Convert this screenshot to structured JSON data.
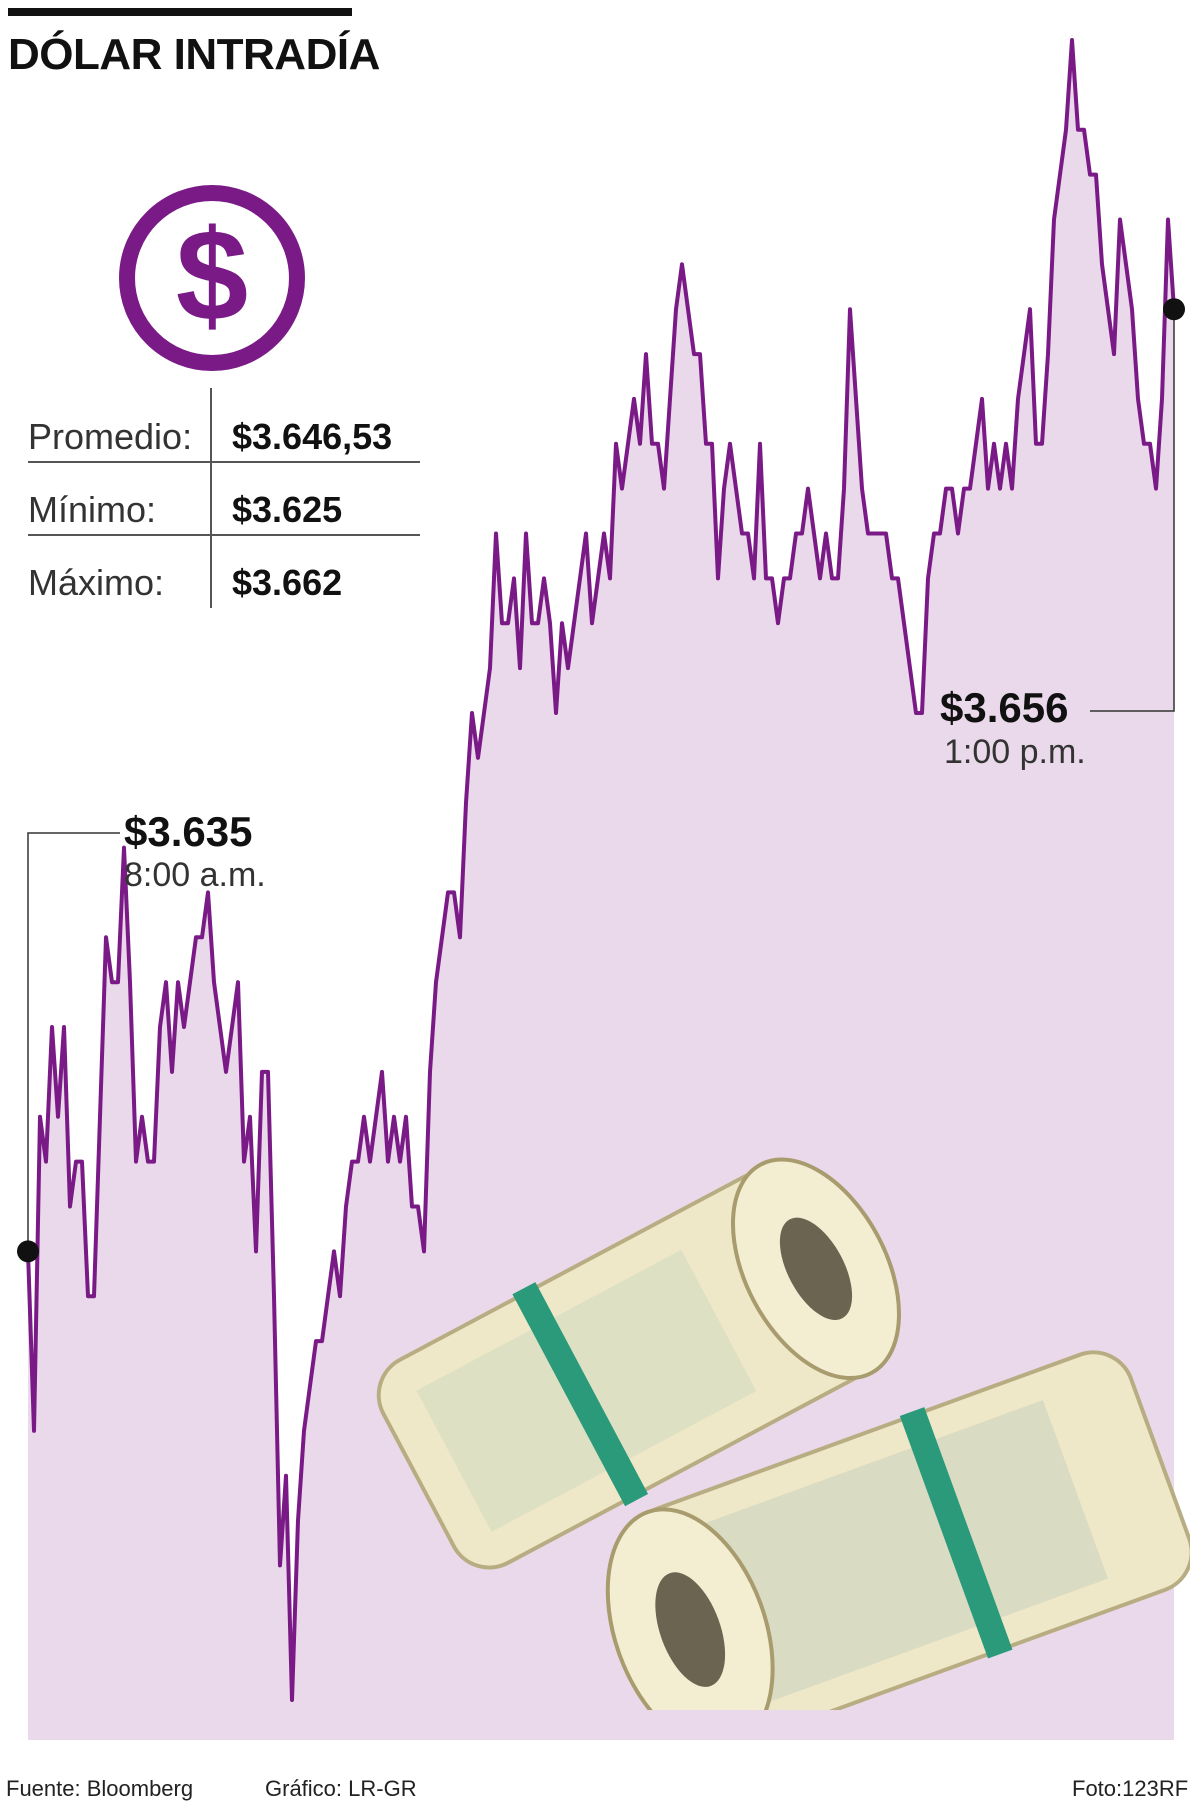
{
  "title": "DÓLAR INTRADÍA",
  "icon": "dollar-circle-icon",
  "colors": {
    "line": "#7a1a86",
    "area": "#ead9ea",
    "icon": "#7a1a86",
    "money": "#efe8c8",
    "band": "#2a9a7a"
  },
  "stats": [
    {
      "label": "Promedio:",
      "value": "$3.646,53"
    },
    {
      "label": "Mínimo:",
      "value": "$3.625"
    },
    {
      "label": "Máximo:",
      "value": "$3.662"
    }
  ],
  "open": {
    "value": "$3.635",
    "time": "8:00 a.m."
  },
  "close": {
    "value": "$3.656",
    "time": "1:00 p.m."
  },
  "footer": {
    "source": "Fuente: Bloomberg",
    "credit": "Gráfico: LR-GR",
    "photo": "Foto:123RF"
  },
  "chart_data": {
    "type": "area",
    "title": "DÓLAR INTRADÍA",
    "xlabel": "",
    "ylabel": "",
    "x": [
      "8:00 a.m.",
      "",
      "",
      "",
      "",
      "",
      "",
      "",
      "",
      "",
      "",
      "",
      "",
      "",
      "",
      "",
      "",
      "",
      "",
      "",
      "",
      "",
      "",
      "",
      "",
      "",
      "",
      "",
      "",
      "",
      "",
      "",
      "",
      "",
      "",
      "",
      "",
      "",
      "",
      "",
      "",
      "",
      "",
      "",
      "",
      "",
      "",
      "",
      "",
      "",
      "",
      "",
      "",
      "",
      "",
      "",
      "",
      "",
      "",
      "",
      "",
      "",
      "",
      "",
      "",
      "",
      "",
      "",
      "",
      "",
      "",
      "",
      "",
      "",
      "",
      "",
      "",
      "",
      "",
      "",
      "",
      "",
      "",
      "",
      "",
      "",
      "",
      "",
      "",
      "",
      "",
      "",
      "",
      "",
      "",
      "",
      "",
      "",
      "",
      "",
      "",
      "",
      "",
      "",
      "",
      "",
      "",
      "",
      "",
      "",
      "",
      "",
      "",
      "",
      "",
      "",
      "",
      "",
      "",
      "",
      "",
      "",
      "",
      "",
      "",
      "",
      "",
      "",
      "",
      "",
      "",
      "",
      "",
      "",
      "",
      "",
      "",
      "",
      "",
      "",
      "",
      "",
      "",
      "",
      "",
      "",
      "",
      "",
      "",
      "",
      "",
      "",
      "",
      "",
      "",
      "",
      "",
      "",
      "",
      "",
      "",
      "",
      "",
      "",
      "",
      "",
      "",
      "",
      "",
      "",
      "",
      "",
      "",
      "",
      "",
      "",
      "",
      "",
      "",
      "",
      "",
      "",
      "",
      "",
      "",
      "",
      "",
      "",
      "",
      "",
      "",
      "1:00 p.m."
    ],
    "series": [
      {
        "values": [
          3635,
          3631,
          3638,
          3637,
          3640,
          3638,
          3640,
          3636,
          3637,
          3637,
          3634,
          3634,
          3638,
          3642,
          3641,
          3641,
          3644,
          3641,
          3637,
          3638,
          3637,
          3637,
          3640,
          3641,
          3639,
          3641,
          3640,
          3641,
          3642,
          3642,
          3643,
          3641,
          3640,
          3639,
          3640,
          3641,
          3637,
          3638,
          3635,
          3639,
          3639,
          3634,
          3628,
          3630,
          3625,
          3629,
          3631,
          3632,
          3633,
          3633,
          3634,
          3635,
          3634,
          3636,
          3637,
          3637,
          3638,
          3637,
          3638,
          3639,
          3637,
          3638,
          3637,
          3638,
          3636,
          3636,
          3635,
          3639,
          3641,
          3642,
          3643,
          3643,
          3642,
          3645,
          3647,
          3646,
          3647,
          3648,
          3651,
          3649,
          3649,
          3650,
          3648,
          3651,
          3649,
          3649,
          3650,
          3649,
          3647,
          3649,
          3648,
          3649,
          3650,
          3651,
          3649,
          3650,
          3651,
          3650,
          3653,
          3652,
          3653,
          3654,
          3653,
          3655,
          3653,
          3653,
          3652,
          3654,
          3656,
          3657,
          3656,
          3655,
          3655,
          3653,
          3653,
          3650,
          3652,
          3653,
          3652,
          3651,
          3651,
          3650,
          3653,
          3650,
          3650,
          3649,
          3650,
          3650,
          3651,
          3651,
          3652,
          3651,
          3650,
          3651,
          3650,
          3650,
          3652,
          3656,
          3654,
          3652,
          3651,
          3651,
          3651,
          3651,
          3650,
          3650,
          3649,
          3648,
          3647,
          3647,
          3650,
          3651,
          3651,
          3652,
          3652,
          3651,
          3652,
          3652,
          3653,
          3654,
          3652,
          3653,
          3652,
          3653,
          3652,
          3654,
          3655,
          3656,
          3653,
          3653,
          3655,
          3658,
          3659,
          3660,
          3662,
          3660,
          3660,
          3659,
          3659,
          3657,
          3656,
          3655,
          3658,
          3657,
          3656,
          3654,
          3653,
          3653,
          3652,
          3654,
          3658,
          3656
        ]
      }
    ],
    "ylim": [
      3625,
      3662
    ],
    "annotations": [
      {
        "x": "8:00 a.m.",
        "y": 3635,
        "label": "$3.635"
      },
      {
        "x": "1:00 p.m.",
        "y": 3656,
        "label": "$3.656"
      }
    ],
    "grid": false
  }
}
